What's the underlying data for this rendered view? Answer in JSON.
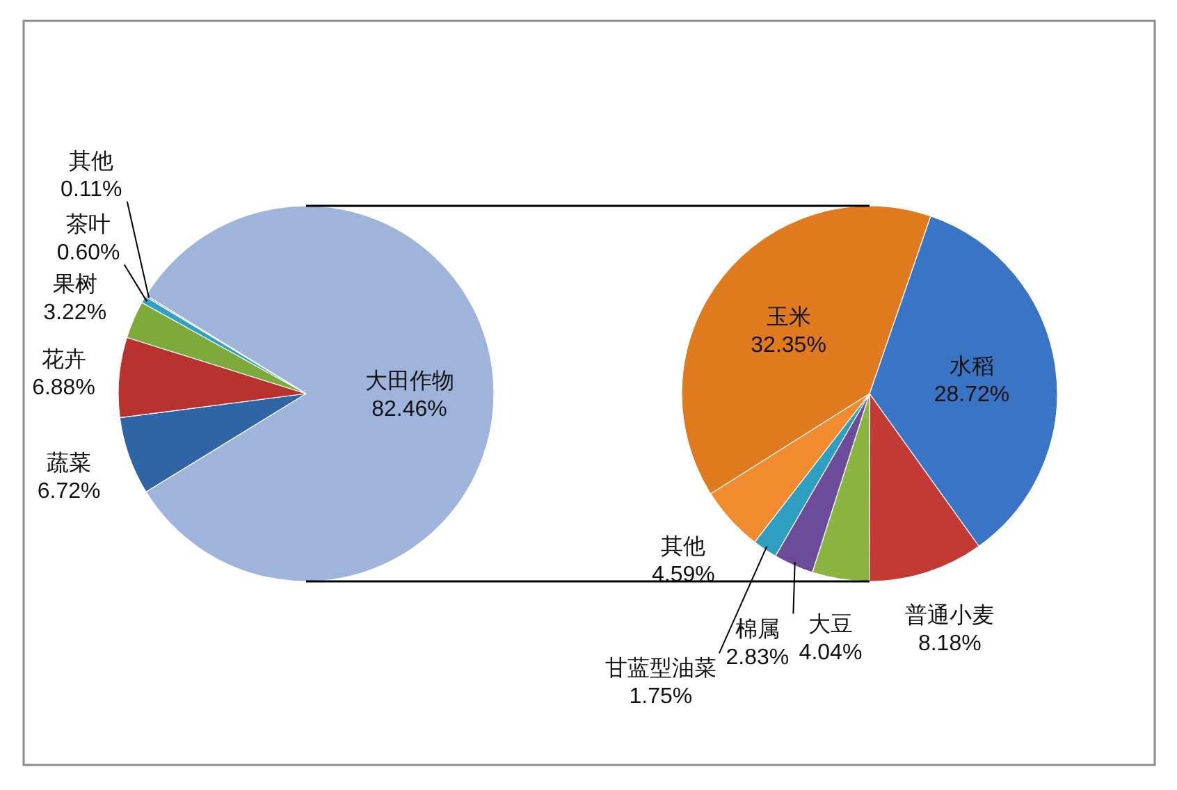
{
  "chart_data": [
    {
      "type": "pie",
      "categories": [
        "大田作物",
        "蔬菜",
        "花卉",
        "果树",
        "茶叶",
        "其他"
      ],
      "values": [
        82.46,
        6.72,
        6.88,
        3.22,
        0.6,
        0.11
      ],
      "value_labels": [
        "82.46%",
        "6.72%",
        "6.88%",
        "3.22%",
        "0.60%",
        "0.11%"
      ],
      "colors": [
        "#9fb4da",
        "#2f65a7",
        "#b8322f",
        "#7ea93b",
        "#2ea1c5",
        "#6a4c93"
      ]
    },
    {
      "type": "pie",
      "categories": [
        "水稻",
        "普通小麦",
        "大豆",
        "棉属",
        "甘蓝型油菜",
        "其他",
        "玉米"
      ],
      "values": [
        28.72,
        8.18,
        4.04,
        2.83,
        1.75,
        4.59,
        32.35
      ],
      "value_labels": [
        "28.72%",
        "8.18%",
        "4.04%",
        "2.83%",
        "1.75%",
        "4.59%",
        "32.35%"
      ],
      "colors": [
        "#3a74c4",
        "#c33a35",
        "#8ab540",
        "#6b4b9a",
        "#2e9fc0",
        "#f28a30",
        "#e07a1f"
      ]
    }
  ]
}
